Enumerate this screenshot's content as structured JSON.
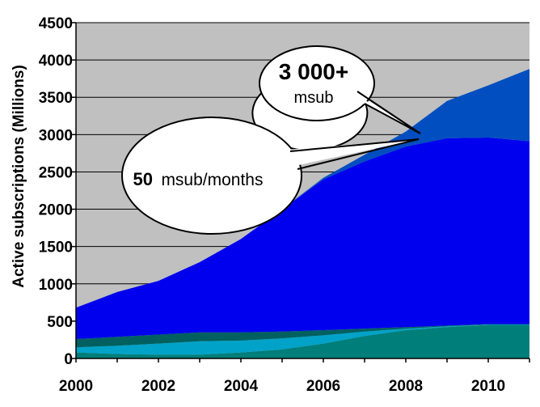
{
  "chart_data": {
    "type": "area",
    "stacked": true,
    "ylabel": "Active subscriptions (Millions)",
    "xlabel": "",
    "xlim": [
      2000,
      2011
    ],
    "ylim": [
      0,
      4500
    ],
    "yticks": [
      0,
      500,
      1000,
      1500,
      2000,
      2500,
      3000,
      3500,
      4000,
      4500
    ],
    "ytick_labels": [
      "0",
      "500",
      "1000",
      "1500",
      "2000",
      "2500",
      "3000",
      "3500",
      "4000",
      "4500"
    ],
    "xticks": [
      2000,
      2002,
      2004,
      2006,
      2008,
      2010
    ],
    "xtick_labels": [
      "2000",
      "2002",
      "2004",
      "2006",
      "2008",
      "2010"
    ],
    "grid": true,
    "background_color": "#c0c0c0",
    "x": [
      2000,
      2001,
      2002,
      2003,
      2004,
      2005,
      2006,
      2007,
      2008,
      2009,
      2010,
      2011
    ],
    "series": [
      {
        "color": "#007e7a",
        "values": [
          80,
          60,
          50,
          50,
          80,
          120,
          200,
          300,
          380,
          420,
          450,
          450
        ]
      },
      {
        "color": "#00a2c8",
        "values": [
          70,
          110,
          150,
          180,
          160,
          150,
          110,
          60,
          20,
          10,
          5,
          5
        ]
      },
      {
        "color": "#006060",
        "values": [
          110,
          120,
          120,
          120,
          110,
          90,
          70,
          40,
          20,
          10,
          5,
          5
        ]
      },
      {
        "color": "#0000ee",
        "values": [
          420,
          600,
          720,
          940,
          1250,
          1640,
          2020,
          2240,
          2420,
          2510,
          2500,
          2450
        ]
      },
      {
        "color": "#004ec0",
        "values": [
          0,
          0,
          0,
          0,
          0,
          0,
          20,
          90,
          200,
          500,
          700,
          970
        ]
      }
    ],
    "annotations": [
      {
        "text_main": "3 000+",
        "text_sub": "msub",
        "points_to": [
          2008.15,
          3000
        ]
      },
      {
        "text_num": "50",
        "text_rest": "msub/months",
        "points_to": [
          2008.15,
          2950
        ]
      }
    ]
  }
}
